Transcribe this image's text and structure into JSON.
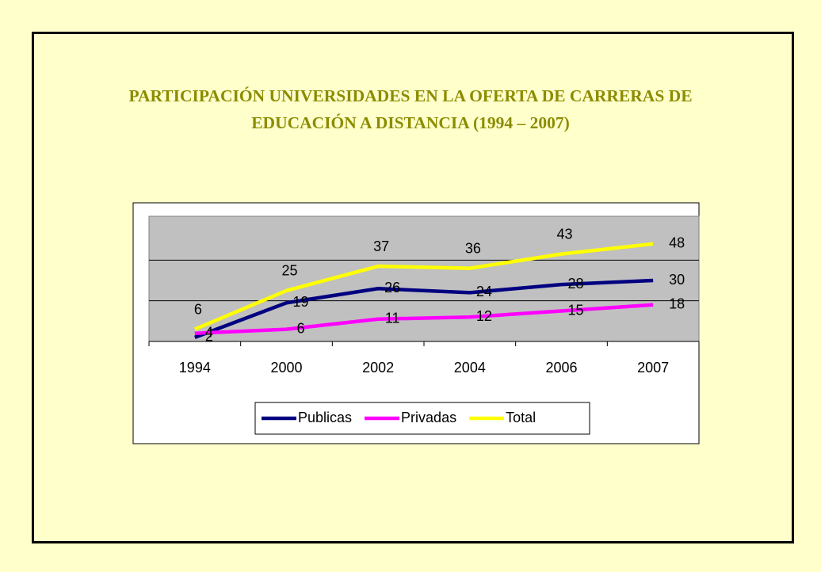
{
  "chart_data": {
    "type": "line",
    "title": "PARTICIPACIÓN UNIVERSIDADES EN LA OFERTA DE CARRERAS DE EDUCACIÓN A DISTANCIA (1994 – 2007)",
    "categories": [
      "1994",
      "2000",
      "2002",
      "2004",
      "2006",
      "2007"
    ],
    "series": [
      {
        "name": "Publicas",
        "color": "#000080",
        "values": [
          2,
          19,
          26,
          24,
          28,
          30
        ]
      },
      {
        "name": "Privadas",
        "color": "#ff00ff",
        "values": [
          4,
          6,
          11,
          12,
          15,
          18
        ]
      },
      {
        "name": "Total",
        "color": "#ffff00",
        "values": [
          6,
          25,
          37,
          36,
          43,
          48
        ]
      }
    ],
    "ylim": [
      0,
      60
    ],
    "yticks": [
      0,
      20,
      40,
      60
    ],
    "grid": true,
    "legend": "bottom"
  }
}
